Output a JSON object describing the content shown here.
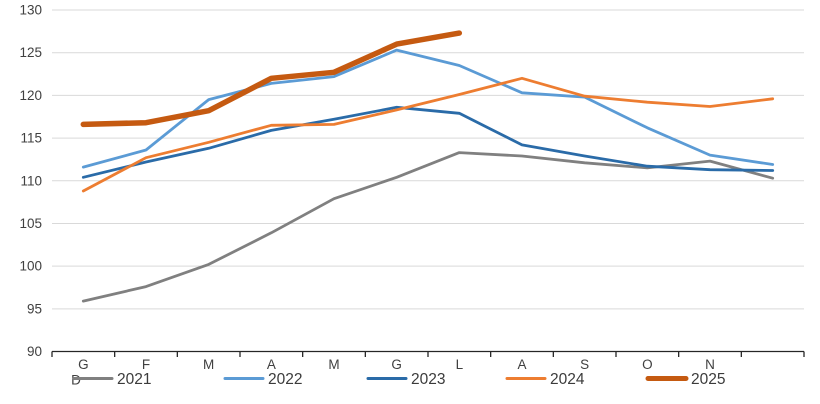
{
  "chart_data": {
    "type": "line",
    "title": "",
    "xlabel": "",
    "ylabel": "",
    "categories": [
      "G",
      "F",
      "M",
      "A",
      "M",
      "G",
      "L",
      "A",
      "S",
      "O",
      "N",
      "D"
    ],
    "wrapped_last_category": "D",
    "y_ticks": [
      130,
      125,
      120,
      115,
      110,
      105,
      100,
      95,
      90
    ],
    "ylim": [
      90,
      130
    ],
    "grid": true,
    "legend_position": "bottom",
    "axis_color": "#262626",
    "gridline_color": "#D9D9D9",
    "label_color": "#404040",
    "series": [
      {
        "name": "2021",
        "color": "#808080",
        "thick": false,
        "values": [
          95.9,
          97.6,
          100.2,
          103.9,
          107.9,
          110.4,
          113.3,
          112.9,
          112.1,
          111.5,
          112.3,
          110.3
        ]
      },
      {
        "name": "2022",
        "color": "#5B9BD5",
        "thick": false,
        "values": [
          111.6,
          113.6,
          119.5,
          121.4,
          122.2,
          125.3,
          123.5,
          120.3,
          119.8,
          116.2,
          113.0,
          111.9
        ]
      },
      {
        "name": "2023",
        "color": "#2A6BA8",
        "thick": false,
        "values": [
          110.4,
          112.2,
          113.8,
          115.9,
          117.2,
          118.6,
          117.9,
          114.2,
          112.9,
          111.7,
          111.3,
          111.2
        ]
      },
      {
        "name": "2024",
        "color": "#ED7D31",
        "thick": false,
        "values": [
          108.8,
          112.7,
          114.5,
          116.5,
          116.6,
          118.3,
          120.1,
          122.0,
          119.9,
          119.2,
          118.7,
          119.6
        ]
      },
      {
        "name": "2025",
        "color": "#C55A11",
        "thick": true,
        "values": [
          116.6,
          116.8,
          118.2,
          122.0,
          122.7,
          126.0,
          127.3
        ]
      }
    ]
  }
}
